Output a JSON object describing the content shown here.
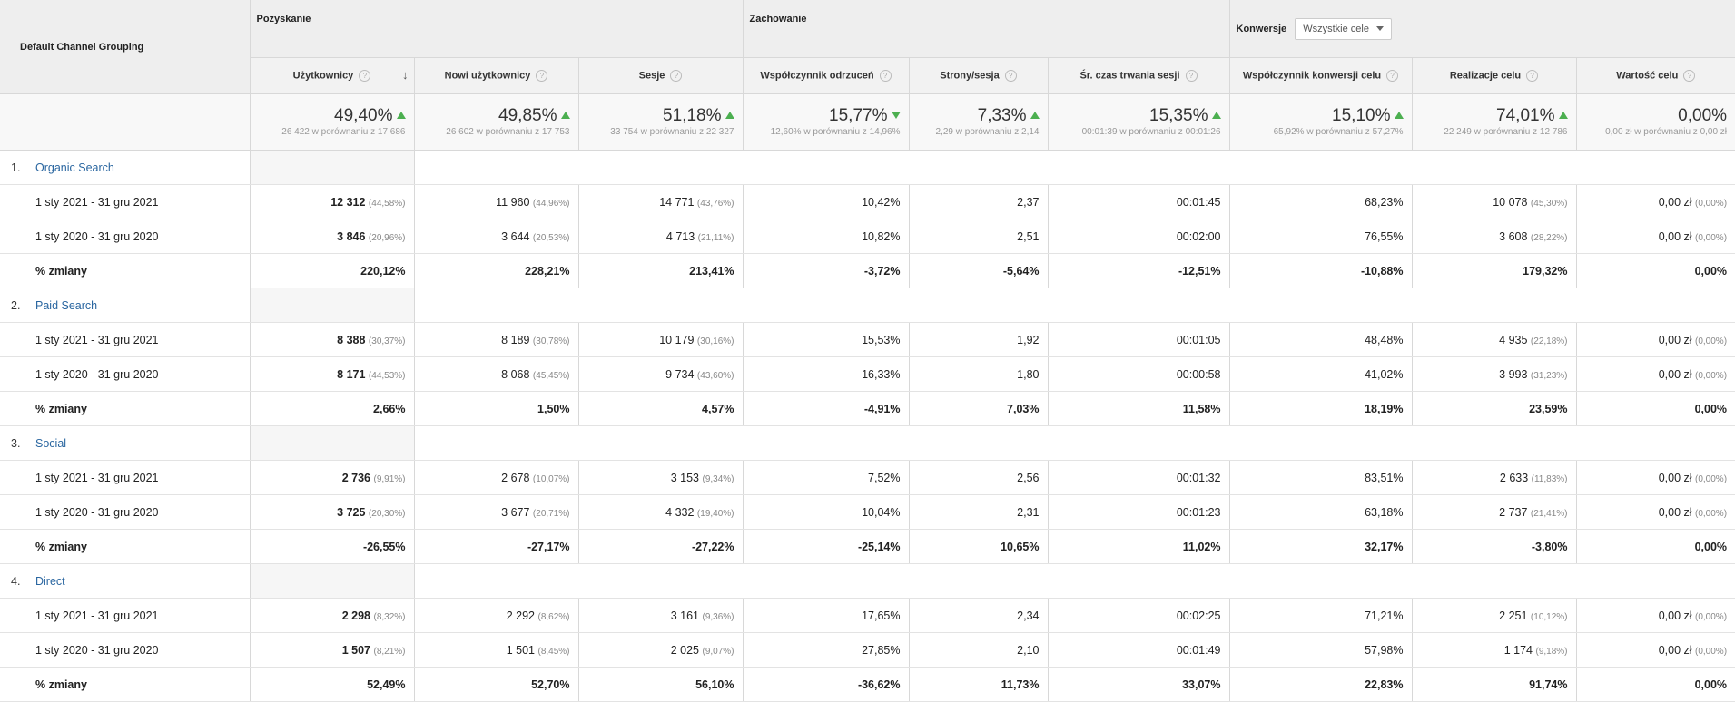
{
  "header": {
    "dimension": "Default Channel Grouping",
    "groups": {
      "acquisition": "Pozyskanie",
      "behavior": "Zachowanie",
      "conversions": "Konwersje"
    },
    "goal_select": "Wszystkie cele",
    "columns": [
      "Użytkownicy",
      "Nowi użytkownicy",
      "Sesje",
      "Współczynnik odrzuceń",
      "Strony/sesja",
      "Śr. czas trwania sesji",
      "Współczynnik konwersji celu",
      "Realizacje celu",
      "Wartość celu"
    ],
    "help_glyph": "?",
    "sort_glyph": "↓"
  },
  "totals": [
    {
      "pct": "49,40%",
      "trend": "up",
      "cmp": "26 422 w porównaniu z 17 686"
    },
    {
      "pct": "49,85%",
      "trend": "up",
      "cmp": "26 602 w porównaniu z 17 753"
    },
    {
      "pct": "51,18%",
      "trend": "up",
      "cmp": "33 754 w porównaniu z 22 327"
    },
    {
      "pct": "15,77%",
      "trend": "down",
      "cmp": "12,60% w porównaniu z 14,96%"
    },
    {
      "pct": "7,33%",
      "trend": "up",
      "cmp": "2,29 w porównaniu z 2,14"
    },
    {
      "pct": "15,35%",
      "trend": "up",
      "cmp": "00:01:39 w porównaniu z 00:01:26"
    },
    {
      "pct": "15,10%",
      "trend": "up",
      "cmp": "65,92% w porównaniu z 57,27%"
    },
    {
      "pct": "74,01%",
      "trend": "up",
      "cmp": "22 249 w porównaniu z 12 786"
    },
    {
      "pct": "0,00%",
      "trend": "none",
      "cmp": "0,00 zł w porównaniu z 0,00 zł"
    }
  ],
  "groups": [
    {
      "index": "1.",
      "name": "Organic Search",
      "rows": [
        {
          "label": "1 sty 2021 - 31 gru 2021",
          "cells": [
            {
              "v": "12 312",
              "s": "(44,58%)"
            },
            {
              "v": "11 960",
              "s": "(44,96%)"
            },
            {
              "v": "14 771",
              "s": "(43,76%)"
            },
            {
              "v": "10,42%",
              "s": ""
            },
            {
              "v": "2,37",
              "s": ""
            },
            {
              "v": "00:01:45",
              "s": ""
            },
            {
              "v": "68,23%",
              "s": ""
            },
            {
              "v": "10 078",
              "s": "(45,30%)"
            },
            {
              "v": "0,00 zł",
              "s": "(0,00%)"
            }
          ]
        },
        {
          "label": "1 sty 2020 - 31 gru 2020",
          "cells": [
            {
              "v": "3 846",
              "s": "(20,96%)"
            },
            {
              "v": "3 644",
              "s": "(20,53%)"
            },
            {
              "v": "4 713",
              "s": "(21,11%)"
            },
            {
              "v": "10,82%",
              "s": ""
            },
            {
              "v": "2,51",
              "s": ""
            },
            {
              "v": "00:02:00",
              "s": ""
            },
            {
              "v": "76,55%",
              "s": ""
            },
            {
              "v": "3 608",
              "s": "(28,22%)"
            },
            {
              "v": "0,00 zł",
              "s": "(0,00%)"
            }
          ]
        },
        {
          "label": "% zmiany",
          "pct": true,
          "cells": [
            {
              "v": "220,12%",
              "s": ""
            },
            {
              "v": "228,21%",
              "s": ""
            },
            {
              "v": "213,41%",
              "s": ""
            },
            {
              "v": "-3,72%",
              "s": ""
            },
            {
              "v": "-5,64%",
              "s": ""
            },
            {
              "v": "-12,51%",
              "s": ""
            },
            {
              "v": "-10,88%",
              "s": ""
            },
            {
              "v": "179,32%",
              "s": ""
            },
            {
              "v": "0,00%",
              "s": ""
            }
          ]
        }
      ]
    },
    {
      "index": "2.",
      "name": "Paid Search",
      "rows": [
        {
          "label": "1 sty 2021 - 31 gru 2021",
          "cells": [
            {
              "v": "8 388",
              "s": "(30,37%)"
            },
            {
              "v": "8 189",
              "s": "(30,78%)"
            },
            {
              "v": "10 179",
              "s": "(30,16%)"
            },
            {
              "v": "15,53%",
              "s": ""
            },
            {
              "v": "1,92",
              "s": ""
            },
            {
              "v": "00:01:05",
              "s": ""
            },
            {
              "v": "48,48%",
              "s": ""
            },
            {
              "v": "4 935",
              "s": "(22,18%)"
            },
            {
              "v": "0,00 zł",
              "s": "(0,00%)"
            }
          ]
        },
        {
          "label": "1 sty 2020 - 31 gru 2020",
          "cells": [
            {
              "v": "8 171",
              "s": "(44,53%)"
            },
            {
              "v": "8 068",
              "s": "(45,45%)"
            },
            {
              "v": "9 734",
              "s": "(43,60%)"
            },
            {
              "v": "16,33%",
              "s": ""
            },
            {
              "v": "1,80",
              "s": ""
            },
            {
              "v": "00:00:58",
              "s": ""
            },
            {
              "v": "41,02%",
              "s": ""
            },
            {
              "v": "3 993",
              "s": "(31,23%)"
            },
            {
              "v": "0,00 zł",
              "s": "(0,00%)"
            }
          ]
        },
        {
          "label": "% zmiany",
          "pct": true,
          "cells": [
            {
              "v": "2,66%",
              "s": ""
            },
            {
              "v": "1,50%",
              "s": ""
            },
            {
              "v": "4,57%",
              "s": ""
            },
            {
              "v": "-4,91%",
              "s": ""
            },
            {
              "v": "7,03%",
              "s": ""
            },
            {
              "v": "11,58%",
              "s": ""
            },
            {
              "v": "18,19%",
              "s": ""
            },
            {
              "v": "23,59%",
              "s": ""
            },
            {
              "v": "0,00%",
              "s": ""
            }
          ]
        }
      ]
    },
    {
      "index": "3.",
      "name": "Social",
      "rows": [
        {
          "label": "1 sty 2021 - 31 gru 2021",
          "cells": [
            {
              "v": "2 736",
              "s": "(9,91%)"
            },
            {
              "v": "2 678",
              "s": "(10,07%)"
            },
            {
              "v": "3 153",
              "s": "(9,34%)"
            },
            {
              "v": "7,52%",
              "s": ""
            },
            {
              "v": "2,56",
              "s": ""
            },
            {
              "v": "00:01:32",
              "s": ""
            },
            {
              "v": "83,51%",
              "s": ""
            },
            {
              "v": "2 633",
              "s": "(11,83%)"
            },
            {
              "v": "0,00 zł",
              "s": "(0,00%)"
            }
          ]
        },
        {
          "label": "1 sty 2020 - 31 gru 2020",
          "cells": [
            {
              "v": "3 725",
              "s": "(20,30%)"
            },
            {
              "v": "3 677",
              "s": "(20,71%)"
            },
            {
              "v": "4 332",
              "s": "(19,40%)"
            },
            {
              "v": "10,04%",
              "s": ""
            },
            {
              "v": "2,31",
              "s": ""
            },
            {
              "v": "00:01:23",
              "s": ""
            },
            {
              "v": "63,18%",
              "s": ""
            },
            {
              "v": "2 737",
              "s": "(21,41%)"
            },
            {
              "v": "0,00 zł",
              "s": "(0,00%)"
            }
          ]
        },
        {
          "label": "% zmiany",
          "pct": true,
          "cells": [
            {
              "v": "-26,55%",
              "s": ""
            },
            {
              "v": "-27,17%",
              "s": ""
            },
            {
              "v": "-27,22%",
              "s": ""
            },
            {
              "v": "-25,14%",
              "s": ""
            },
            {
              "v": "10,65%",
              "s": ""
            },
            {
              "v": "11,02%",
              "s": ""
            },
            {
              "v": "32,17%",
              "s": ""
            },
            {
              "v": "-3,80%",
              "s": ""
            },
            {
              "v": "0,00%",
              "s": ""
            }
          ]
        }
      ]
    },
    {
      "index": "4.",
      "name": "Direct",
      "rows": [
        {
          "label": "1 sty 2021 - 31 gru 2021",
          "cells": [
            {
              "v": "2 298",
              "s": "(8,32%)"
            },
            {
              "v": "2 292",
              "s": "(8,62%)"
            },
            {
              "v": "3 161",
              "s": "(9,36%)"
            },
            {
              "v": "17,65%",
              "s": ""
            },
            {
              "v": "2,34",
              "s": ""
            },
            {
              "v": "00:02:25",
              "s": ""
            },
            {
              "v": "71,21%",
              "s": ""
            },
            {
              "v": "2 251",
              "s": "(10,12%)"
            },
            {
              "v": "0,00 zł",
              "s": "(0,00%)"
            }
          ]
        },
        {
          "label": "1 sty 2020 - 31 gru 2020",
          "cells": [
            {
              "v": "1 507",
              "s": "(8,21%)"
            },
            {
              "v": "1 501",
              "s": "(8,45%)"
            },
            {
              "v": "2 025",
              "s": "(9,07%)"
            },
            {
              "v": "27,85%",
              "s": ""
            },
            {
              "v": "2,10",
              "s": ""
            },
            {
              "v": "00:01:49",
              "s": ""
            },
            {
              "v": "57,98%",
              "s": ""
            },
            {
              "v": "1 174",
              "s": "(9,18%)"
            },
            {
              "v": "0,00 zł",
              "s": "(0,00%)"
            }
          ]
        },
        {
          "label": "% zmiany",
          "pct": true,
          "cells": [
            {
              "v": "52,49%",
              "s": ""
            },
            {
              "v": "52,70%",
              "s": ""
            },
            {
              "v": "56,10%",
              "s": ""
            },
            {
              "v": "-36,62%",
              "s": ""
            },
            {
              "v": "11,73%",
              "s": ""
            },
            {
              "v": "33,07%",
              "s": ""
            },
            {
              "v": "22,83%",
              "s": ""
            },
            {
              "v": "91,74%",
              "s": ""
            },
            {
              "v": "0,00%",
              "s": ""
            }
          ]
        }
      ]
    }
  ]
}
